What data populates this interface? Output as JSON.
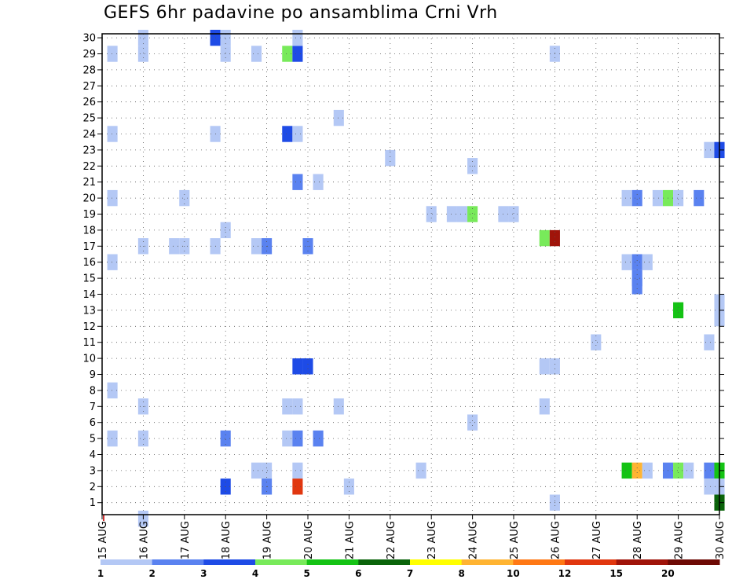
{
  "chart_data": {
    "type": "heatmap",
    "title": "GEFS 6hr padavine po ansamblima Crni Vrh",
    "x_ticks": [
      "15 AUG",
      "16 AUG",
      "17 AUG",
      "18 AUG",
      "19 AUG",
      "20 AUG",
      "21 AUG",
      "22 AUG",
      "23 AUG",
      "24 AUG",
      "25 AUG",
      "26 AUG",
      "27 AUG",
      "28 AUG",
      "29 AUG",
      "30 AUG"
    ],
    "x_range_days": [
      15,
      30
    ],
    "y_ticks": [
      1,
      2,
      3,
      4,
      5,
      6,
      7,
      8,
      9,
      10,
      11,
      12,
      13,
      14,
      15,
      16,
      17,
      18,
      19,
      20,
      21,
      22,
      23,
      24,
      25,
      26,
      27,
      28,
      29,
      30
    ],
    "y_range": [
      0.25,
      30.25
    ],
    "grid": true,
    "legend": {
      "placement": "bottom",
      "labels": [
        "1",
        "2",
        "3",
        "4",
        "5",
        "6",
        "7",
        "8",
        "10",
        "12",
        "15",
        "20"
      ],
      "colors": [
        "#b4c8f5",
        "#5a82f0",
        "#1e4be6",
        "#78ea5a",
        "#14c314",
        "#0a640a",
        "#ffff00",
        "#ffb432",
        "#ff7814",
        "#e1370f",
        "#a0140a",
        "#6e0a05"
      ]
    },
    "bin_colors": [
      "#b4c8f5",
      "#5a82f0",
      "#1e4be6",
      "#78ea5a",
      "#14c314",
      "#0a640a",
      "#ffff00",
      "#ffb432",
      "#ff7814",
      "#e1370f",
      "#a0140a",
      "#6e0a05"
    ],
    "cells_columns": [
      "day",
      "member",
      "bin"
    ],
    "cells": [
      [
        15.25,
        29,
        0
      ],
      [
        16.0,
        29,
        0
      ],
      [
        16.0,
        30,
        0
      ],
      [
        17.75,
        30,
        2
      ],
      [
        18.0,
        29,
        0
      ],
      [
        18.0,
        30,
        0
      ],
      [
        18.75,
        29,
        0
      ],
      [
        19.5,
        29,
        3
      ],
      [
        19.75,
        29,
        2
      ],
      [
        19.75,
        30,
        0
      ],
      [
        26.0,
        29,
        0
      ],
      [
        15.25,
        24,
        0
      ],
      [
        17.75,
        24,
        0
      ],
      [
        19.5,
        24,
        2
      ],
      [
        19.75,
        24,
        0
      ],
      [
        20.75,
        25,
        0
      ],
      [
        22.0,
        22.5,
        0
      ],
      [
        24.0,
        22,
        0
      ],
      [
        29.75,
        23,
        0
      ],
      [
        30.0,
        23,
        2
      ],
      [
        19.75,
        21,
        1
      ],
      [
        20.25,
        21,
        0
      ],
      [
        15.25,
        20,
        0
      ],
      [
        17.0,
        20,
        0
      ],
      [
        28.0,
        20,
        1
      ],
      [
        27.75,
        20,
        0
      ],
      [
        28.5,
        20,
        0
      ],
      [
        28.75,
        20,
        3
      ],
      [
        29.0,
        20,
        0
      ],
      [
        29.5,
        20,
        1
      ],
      [
        23.0,
        19,
        0
      ],
      [
        23.5,
        19,
        0
      ],
      [
        23.75,
        19,
        0
      ],
      [
        24.0,
        19,
        3
      ],
      [
        24.75,
        19,
        0
      ],
      [
        25.0,
        19,
        0
      ],
      [
        18.0,
        18,
        0
      ],
      [
        25.75,
        17.5,
        3
      ],
      [
        26.0,
        17.5,
        10
      ],
      [
        16.0,
        17,
        0
      ],
      [
        16.75,
        17,
        0
      ],
      [
        17.0,
        17,
        0
      ],
      [
        17.75,
        17,
        0
      ],
      [
        18.75,
        17,
        0
      ],
      [
        19.0,
        17,
        1
      ],
      [
        20.0,
        17,
        1
      ],
      [
        15.25,
        16,
        0
      ],
      [
        27.75,
        16,
        0
      ],
      [
        28.0,
        16,
        1
      ],
      [
        28.25,
        16,
        0
      ],
      [
        28.0,
        15,
        1
      ],
      [
        28.0,
        14.5,
        1
      ],
      [
        29.0,
        13,
        4
      ],
      [
        30.0,
        13.5,
        0
      ],
      [
        30.0,
        12.5,
        0
      ],
      [
        27.0,
        11,
        0
      ],
      [
        29.75,
        11,
        0
      ],
      [
        19.75,
        9.5,
        2
      ],
      [
        20.0,
        9.5,
        2
      ],
      [
        25.75,
        9.5,
        0
      ],
      [
        26.0,
        9.5,
        0
      ],
      [
        15.25,
        8,
        0
      ],
      [
        16.0,
        7,
        0
      ],
      [
        19.5,
        7,
        0
      ],
      [
        19.75,
        7,
        0
      ],
      [
        20.75,
        7,
        0
      ],
      [
        25.75,
        7,
        0
      ],
      [
        24.0,
        6,
        0
      ],
      [
        15.25,
        5,
        0
      ],
      [
        16.0,
        5,
        0
      ],
      [
        18.0,
        5,
        1
      ],
      [
        19.5,
        5,
        0
      ],
      [
        19.75,
        5,
        1
      ],
      [
        20.25,
        5,
        1
      ],
      [
        18.75,
        3,
        0
      ],
      [
        19.0,
        3,
        0
      ],
      [
        19.75,
        3,
        0
      ],
      [
        22.75,
        3,
        0
      ],
      [
        27.75,
        3,
        4
      ],
      [
        28.0,
        3,
        7
      ],
      [
        28.25,
        3,
        0
      ],
      [
        28.75,
        3,
        1
      ],
      [
        29.0,
        3,
        3
      ],
      [
        29.25,
        3,
        0
      ],
      [
        29.75,
        3,
        1
      ],
      [
        30.0,
        3,
        4
      ],
      [
        18.0,
        2,
        2
      ],
      [
        19.0,
        2,
        1
      ],
      [
        19.75,
        2,
        9
      ],
      [
        21.0,
        2,
        0
      ],
      [
        29.75,
        2,
        0
      ],
      [
        30.0,
        2,
        0
      ],
      [
        26.0,
        1,
        0
      ],
      [
        30.0,
        1,
        5
      ],
      [
        16.0,
        0,
        0
      ]
    ]
  }
}
